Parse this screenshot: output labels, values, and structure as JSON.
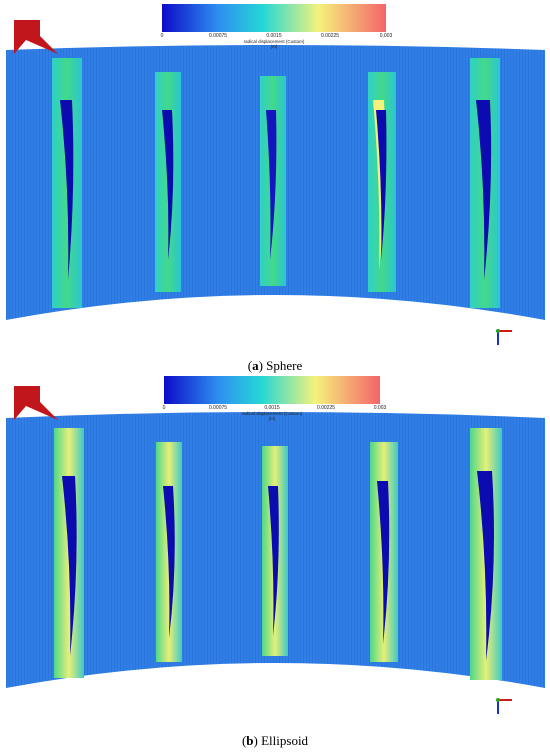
{
  "panels": [
    {
      "id": "a",
      "caption_letter": "a",
      "caption_text": "Sphere",
      "colorbar": {
        "ticks": [
          "0",
          "0.00075",
          "0.0015",
          "0.00225",
          "0.003"
        ],
        "label": "radical displacement (Custom)",
        "unit": "(m)"
      }
    },
    {
      "id": "b",
      "caption_letter": "b",
      "caption_text": "Ellipsoid",
      "colorbar": {
        "ticks": [
          "0",
          "0.00075",
          "0.0015",
          "0.00225",
          "0.003"
        ],
        "label": "radical displacement (Custom)",
        "unit": "(m)"
      }
    }
  ],
  "colors": {
    "low": "#1010d8",
    "mid_low": "#2f86ea",
    "mid": "#20d0d8",
    "mid_high": "#f3f07a",
    "high": "#f26a5a",
    "logo": "#c0161c"
  },
  "icons": [
    "logo-icon",
    "axis-triad-icon"
  ]
}
